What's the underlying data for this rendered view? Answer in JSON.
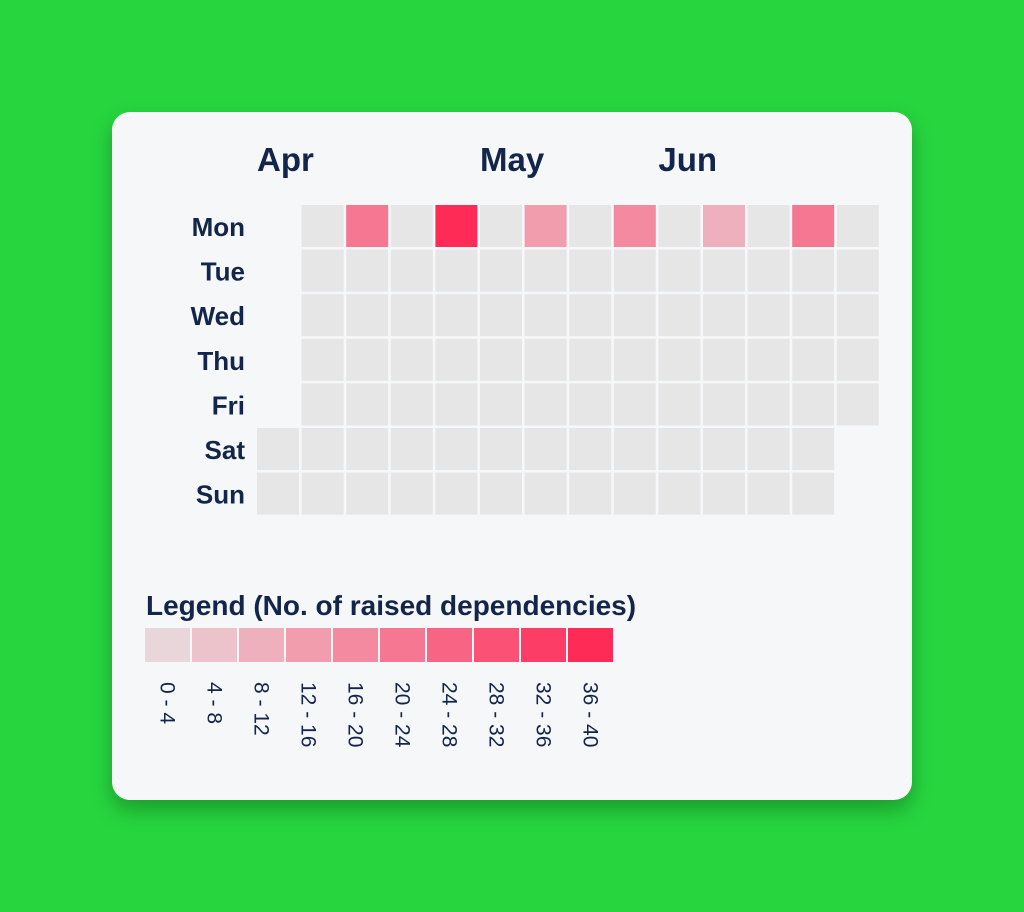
{
  "chart_data": {
    "type": "heatmap",
    "months": [
      {
        "label": "Apr",
        "week_index": 0
      },
      {
        "label": "May",
        "week_index": 5
      },
      {
        "label": "Jun",
        "week_index": 9
      }
    ],
    "days": [
      "Mon",
      "Tue",
      "Wed",
      "Thu",
      "Fri",
      "Sat",
      "Sun"
    ],
    "weeks": 13,
    "first_week_start_day": 5,
    "last_week_end_day": 4,
    "values": [
      [
        null,
        null,
        null,
        null,
        null,
        0,
        0
      ],
      [
        0,
        0,
        0,
        0,
        0,
        0,
        0
      ],
      [
        22,
        0,
        0,
        0,
        0,
        0,
        0
      ],
      [
        0,
        0,
        0,
        0,
        0,
        0,
        0
      ],
      [
        38,
        0,
        0,
        0,
        0,
        0,
        0
      ],
      [
        0,
        0,
        0,
        0,
        0,
        0,
        0
      ],
      [
        14,
        0,
        0,
        0,
        0,
        0,
        0
      ],
      [
        0,
        0,
        0,
        0,
        0,
        0,
        0
      ],
      [
        18,
        0,
        0,
        0,
        0,
        0,
        0
      ],
      [
        0,
        0,
        0,
        0,
        0,
        0,
        0
      ],
      [
        10,
        0,
        0,
        0,
        0,
        0,
        0
      ],
      [
        0,
        0,
        0,
        0,
        0,
        0,
        0
      ],
      [
        22,
        0,
        0,
        0,
        0,
        0,
        0
      ],
      [
        0,
        0,
        0,
        0,
        0,
        null,
        null
      ]
    ],
    "empty_color": "#e6e6e6",
    "legend": {
      "title": "Legend (No. of raised dependencies)",
      "bins": [
        {
          "label": "0 - 4",
          "color": "#e9d6da"
        },
        {
          "label": "4 - 8",
          "color": "#ecc3cb"
        },
        {
          "label": "8 - 12",
          "color": "#efb0bd"
        },
        {
          "label": "12 - 16",
          "color": "#f19dae"
        },
        {
          "label": "16 - 20",
          "color": "#f38aa0"
        },
        {
          "label": "20 - 24",
          "color": "#f67791"
        },
        {
          "label": "24 - 28",
          "color": "#f86483"
        },
        {
          "label": "28 - 32",
          "color": "#fa5174"
        },
        {
          "label": "32 - 36",
          "color": "#fc3e66"
        },
        {
          "label": "36 - 40",
          "color": "#ff2b57"
        }
      ]
    }
  }
}
